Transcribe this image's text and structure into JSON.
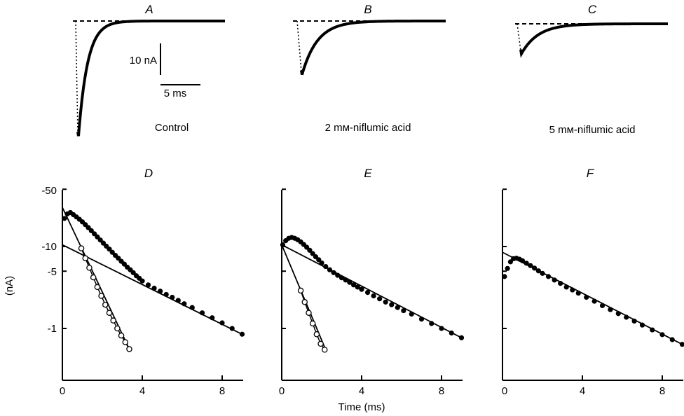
{
  "figure": {
    "top_panels": [
      {
        "letter": "A",
        "condition": "Control",
        "peak_nA": -36.5
      },
      {
        "letter": "B",
        "condition": "2 mм-niflumic acid",
        "peak_nA": -17.0
      },
      {
        "letter": "C",
        "condition": "5 mм-niflumic acid",
        "peak_nA": -9.5
      }
    ],
    "scale_bar": {
      "current_label": "10 nA",
      "time_label": "5 ms"
    },
    "bottom_panels": [
      {
        "letter": "D"
      },
      {
        "letter": "E"
      },
      {
        "letter": "F"
      }
    ],
    "ylabel": "(nA)",
    "xlabel": "Time (ms)",
    "yticks": [
      "-50",
      "-10",
      "-5",
      "-1"
    ],
    "xticks": [
      "0",
      "4",
      "8"
    ]
  },
  "chart_data": [
    {
      "type": "scatter",
      "title": "D",
      "xlabel": "",
      "ylabel": "(nA)",
      "y_scale": "log",
      "xlim": [
        0,
        9
      ],
      "ylim": [
        -0.45,
        -50
      ],
      "series": [
        {
          "marker": "filled",
          "x": [
            0.1,
            0.25,
            0.4,
            0.55,
            0.7,
            0.85,
            1.0,
            1.15,
            1.3,
            1.45,
            1.6,
            1.75,
            1.9,
            2.05,
            2.2,
            2.35,
            2.5,
            2.65,
            2.8,
            2.95,
            3.1,
            3.25,
            3.4,
            3.55,
            3.7,
            3.85,
            4.0,
            4.3,
            4.6,
            4.9,
            5.2,
            5.5,
            5.8,
            6.1,
            6.5,
            7.0,
            7.5,
            8.0,
            8.5,
            9.0
          ],
          "y": [
            -22,
            -25,
            -26,
            -24.5,
            -23,
            -21.5,
            -20,
            -18.5,
            -17,
            -15.6,
            -14.3,
            -13.1,
            -12.0,
            -11.0,
            -10.1,
            -9.3,
            -8.5,
            -7.8,
            -7.2,
            -6.6,
            -6.1,
            -5.6,
            -5.2,
            -4.8,
            -4.4,
            -4.1,
            -3.8,
            -3.4,
            -3.1,
            -2.85,
            -2.6,
            -2.4,
            -2.2,
            -2.0,
            -1.8,
            -1.55,
            -1.35,
            -1.17,
            -1.0,
            -0.85
          ]
        },
        {
          "marker": "open",
          "x": [
            0.95,
            1.15,
            1.35,
            1.55,
            1.75,
            1.95,
            2.15,
            2.35,
            2.55,
            2.75,
            2.95,
            3.15,
            3.35
          ],
          "y": [
            -9.5,
            -7.2,
            -5.5,
            -4.2,
            -3.2,
            -2.5,
            -1.95,
            -1.55,
            -1.25,
            -1.0,
            -0.82,
            -0.68,
            -0.56
          ]
        }
      ],
      "fit_lines": [
        {
          "x": [
            0,
            9
          ],
          "y": [
            -10.5,
            -0.85
          ]
        },
        {
          "x": [
            0,
            3.35
          ],
          "y": [
            -30,
            -0.56
          ]
        }
      ]
    },
    {
      "type": "scatter",
      "title": "E",
      "xlabel": "Time (ms)",
      "ylabel": "",
      "y_scale": "log",
      "xlim": [
        0,
        9
      ],
      "ylim": [
        -0.45,
        -50
      ],
      "series": [
        {
          "marker": "filled",
          "x": [
            0.05,
            0.2,
            0.35,
            0.5,
            0.65,
            0.8,
            0.95,
            1.1,
            1.25,
            1.4,
            1.55,
            1.7,
            1.85,
            2.0,
            2.2,
            2.4,
            2.6,
            2.8,
            3.0,
            3.2,
            3.4,
            3.6,
            3.8,
            4.0,
            4.3,
            4.6,
            4.9,
            5.2,
            5.5,
            5.8,
            6.1,
            6.5,
            7.0,
            7.5,
            8.0,
            8.5,
            9.0
          ],
          "y": [
            -10.5,
            -11.8,
            -12.6,
            -12.9,
            -12.6,
            -12.1,
            -11.4,
            -10.6,
            -9.8,
            -9.0,
            -8.2,
            -7.5,
            -6.9,
            -6.3,
            -5.7,
            -5.2,
            -4.8,
            -4.45,
            -4.15,
            -3.9,
            -3.65,
            -3.4,
            -3.2,
            -3.0,
            -2.75,
            -2.5,
            -2.3,
            -2.1,
            -1.95,
            -1.8,
            -1.65,
            -1.5,
            -1.3,
            -1.15,
            -1.0,
            -0.88,
            -0.77
          ]
        },
        {
          "marker": "open",
          "x": [
            0.95,
            1.15,
            1.35,
            1.55,
            1.75,
            1.95,
            2.15
          ],
          "y": [
            -2.9,
            -2.1,
            -1.55,
            -1.15,
            -0.85,
            -0.65,
            -0.55
          ]
        }
      ],
      "fit_lines": [
        {
          "x": [
            0,
            9
          ],
          "y": [
            -10.5,
            -0.77
          ]
        },
        {
          "x": [
            0,
            2.2
          ],
          "y": [
            -10.5,
            -0.55
          ]
        }
      ]
    },
    {
      "type": "scatter",
      "title": "F",
      "xlabel": "",
      "ylabel": "",
      "y_scale": "log",
      "xlim": [
        0,
        9
      ],
      "ylim": [
        -0.45,
        -50
      ],
      "series": [
        {
          "marker": "filled",
          "x": [
            0.1,
            0.25,
            0.4,
            0.55,
            0.7,
            0.85,
            1.0,
            1.2,
            1.4,
            1.6,
            1.8,
            2.0,
            2.3,
            2.6,
            2.9,
            3.2,
            3.5,
            3.8,
            4.2,
            4.6,
            5.0,
            5.4,
            5.8,
            6.2,
            6.6,
            7.0,
            7.5,
            8.0,
            8.5,
            9.0
          ],
          "y": [
            -4.3,
            -5.4,
            -6.5,
            -7.1,
            -7.2,
            -7.0,
            -6.7,
            -6.25,
            -5.85,
            -5.45,
            -5.05,
            -4.7,
            -4.3,
            -3.9,
            -3.55,
            -3.2,
            -2.95,
            -2.7,
            -2.4,
            -2.15,
            -1.9,
            -1.7,
            -1.52,
            -1.37,
            -1.23,
            -1.1,
            -0.96,
            -0.84,
            -0.73,
            -0.64
          ]
        }
      ],
      "fit_lines": [
        {
          "x": [
            0,
            9
          ],
          "y": [
            -8.5,
            -0.64
          ]
        }
      ]
    }
  ]
}
